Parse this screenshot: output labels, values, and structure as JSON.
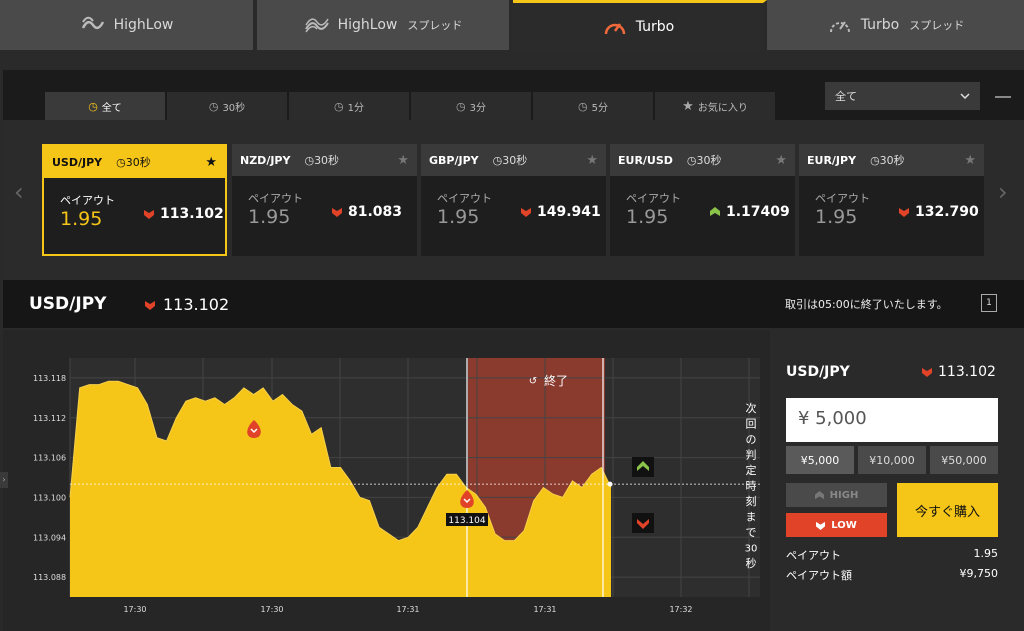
{
  "top_tabs": [
    {
      "label": "HighLow",
      "sub": "",
      "icon": "highlow-logo-icon"
    },
    {
      "label": "HighLow",
      "sub": "スプレッド",
      "icon": "highlow-spread-logo-icon"
    },
    {
      "label": "Turbo",
      "sub": "",
      "icon": "turbo-gauge-icon"
    },
    {
      "label": "Turbo",
      "sub": "スプレッド",
      "icon": "turbo-spread-gauge-icon"
    }
  ],
  "filters": [
    {
      "label": "全て"
    },
    {
      "label": "30秒"
    },
    {
      "label": "1分"
    },
    {
      "label": "3分"
    },
    {
      "label": "5分"
    },
    {
      "label": "お気に入り"
    }
  ],
  "dropdown": {
    "value": "全て"
  },
  "cards": [
    {
      "pair": "USD/JPY",
      "time": "30秒",
      "payout_label": "ペイアウト",
      "payout": "1.95",
      "rate": "113.102",
      "dir": "down"
    },
    {
      "pair": "NZD/JPY",
      "time": "30秒",
      "payout_label": "ペイアウト",
      "payout": "1.95",
      "rate": "81.083",
      "dir": "down"
    },
    {
      "pair": "GBP/JPY",
      "time": "30秒",
      "payout_label": "ペイアウト",
      "payout": "1.95",
      "rate": "149.941",
      "dir": "down"
    },
    {
      "pair": "EUR/USD",
      "time": "30秒",
      "payout_label": "ペイアウト",
      "payout": "1.95",
      "rate": "1.17409",
      "dir": "up"
    },
    {
      "pair": "EUR/JPY",
      "time": "30秒",
      "payout_label": "ペイアウト",
      "payout": "1.95",
      "rate": "132.790",
      "dir": "down"
    }
  ],
  "asset": {
    "name": "USD/JPY",
    "rate": "113.102",
    "notice": "取引は05:00に終了いたします。",
    "expand_label": "1"
  },
  "chart_data": {
    "type": "area",
    "y_ticks": [
      "113.118",
      "113.112",
      "113.106",
      "113.100",
      "113.094",
      "113.088"
    ],
    "x_ticks": [
      "17:30",
      "17:30",
      "17:31",
      "17:31",
      "17:32"
    ],
    "expiry_label": "終了",
    "next_label": "次回の判定時刻まで",
    "countdown": "30",
    "countdown_unit": "秒",
    "current_value": 113.102,
    "marker_label": "113.104",
    "ylim": [
      113.085,
      113.121
    ],
    "values": [
      113.1,
      113.1165,
      113.117,
      113.117,
      113.1175,
      113.1175,
      113.117,
      113.1165,
      113.114,
      113.109,
      113.1085,
      113.112,
      113.1145,
      113.115,
      113.1145,
      113.115,
      113.114,
      113.115,
      113.1165,
      113.1155,
      113.1165,
      113.1145,
      113.1155,
      113.114,
      113.113,
      113.1095,
      113.1105,
      113.1045,
      113.1045,
      113.1025,
      113.1,
      113.0995,
      113.0955,
      113.0945,
      113.0935,
      113.094,
      113.0955,
      113.0985,
      113.1015,
      113.1035,
      113.1035,
      113.1015,
      113.1005,
      113.0985,
      113.0945,
      113.0935,
      113.0935,
      113.095,
      113.0995,
      113.1015,
      113.1005,
      113.1,
      113.1025,
      113.1015,
      113.1035,
      113.1045,
      113.1015
    ]
  },
  "panel": {
    "pair": "USD/JPY",
    "rate": "113.102",
    "amount": "¥ 5,000",
    "quick": [
      "¥5,000",
      "¥10,000",
      "¥50,000"
    ],
    "high_label": "HIGH",
    "low_label": "LOW",
    "buy_label": "今すぐ購入",
    "payout_label": "ペイアウト",
    "payout_value": "1.95",
    "payout_amount_label": "ペイアウト額",
    "payout_amount_value": "¥9,750"
  },
  "colors": {
    "accent": "#f5c518",
    "low": "#e04328",
    "up": "#8bc34a",
    "expiry": "#8b3a2e"
  }
}
